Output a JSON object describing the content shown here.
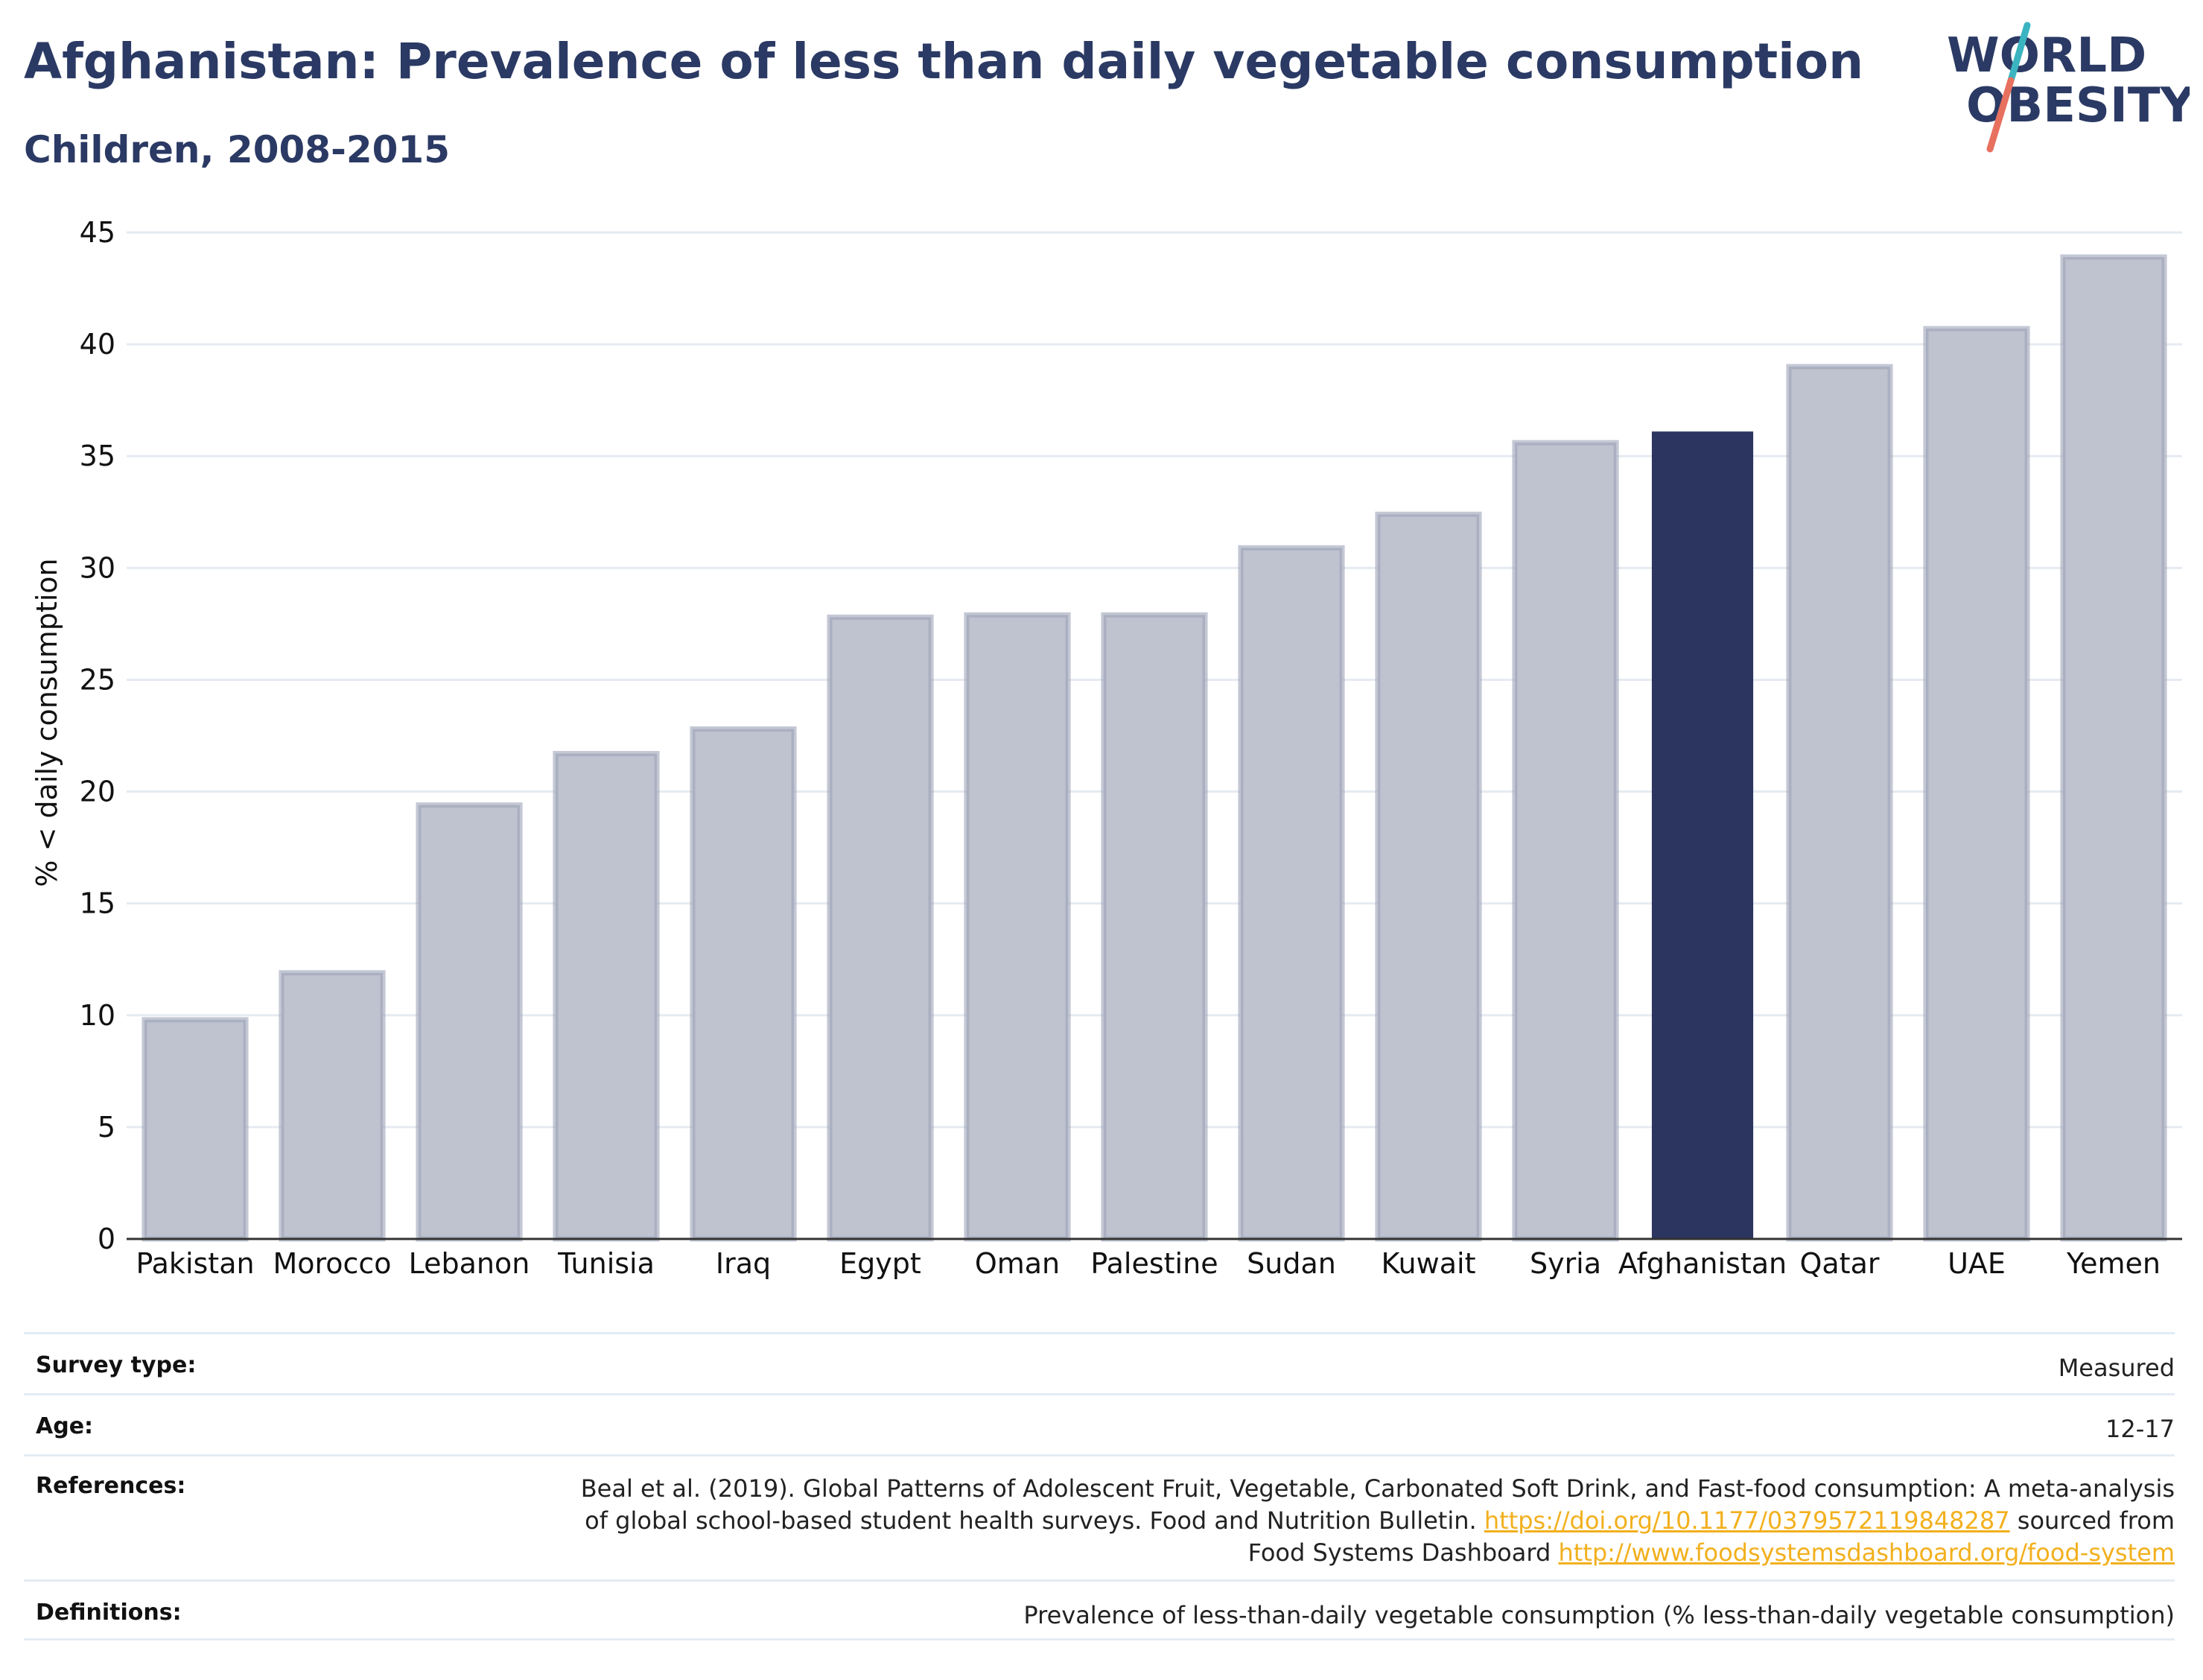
{
  "header": {
    "title": "Afghanistan: Prevalence of less than daily vegetable consumption",
    "subtitle": "Children, 2008-2015"
  },
  "logo": {
    "line1": "WORLD",
    "line2": "OBESITY",
    "colors": {
      "text": "#2b3a64",
      "slash_top": "#3bb4c1",
      "slash_bottom": "#e8705f"
    }
  },
  "chart_data": {
    "type": "bar",
    "categories": [
      "Pakistan",
      "Morocco",
      "Lebanon",
      "Tunisia",
      "Iraq",
      "Egypt",
      "Oman",
      "Palestine",
      "Sudan",
      "Kuwait",
      "Syria",
      "Afghanistan",
      "Qatar",
      "UAE",
      "Yemen"
    ],
    "values": [
      9.8,
      11.9,
      19.4,
      21.7,
      22.8,
      27.8,
      27.9,
      27.9,
      30.9,
      32.4,
      35.6,
      36.1,
      39.0,
      40.7,
      43.9
    ],
    "highlight": "Afghanistan",
    "title": "",
    "xlabel": "",
    "ylabel": "% < daily consumption",
    "ylim": [
      0,
      45
    ],
    "yticks": [
      0,
      5,
      10,
      15,
      20,
      25,
      30,
      35,
      40,
      45
    ],
    "grid": true,
    "legend": "none",
    "colors": {
      "bar": "#bfc3cf",
      "bar_border": "#9da3b8",
      "highlight": "#2b3560",
      "grid": "#e6ebf1",
      "axis": "#333333"
    }
  },
  "meta": {
    "survey_type": {
      "label": "Survey type:",
      "value": "Measured"
    },
    "age": {
      "label": "Age:",
      "value": "12-17"
    },
    "references": {
      "label": "References:",
      "line1": "Beal et al. (2019). Global Patterns of Adolescent Fruit, Vegetable, Carbonated Soft Drink, and Fast-food consumption: A meta-analysis",
      "line2_text": "of global school-based student health surveys. Food and Nutrition Bulletin.",
      "doi_link": "https://doi.org/10.1177/0379572119848287",
      "line2_suffix": "sourced from",
      "line3_text": "Food Systems Dashboard",
      "dashboard_link": "http://www.foodsystemsdashboard.org/food-system"
    },
    "definitions": {
      "label": "Definitions:",
      "value": "Prevalence of less-than-daily vegetable consumption (% less-than-daily vegetable consumption)"
    }
  }
}
